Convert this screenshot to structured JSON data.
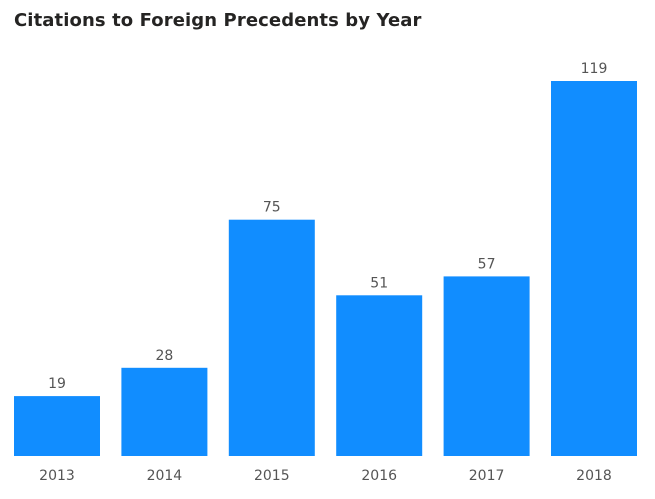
{
  "chart_data": {
    "type": "bar",
    "title": "Citations to Foreign Precedents by Year",
    "xlabel": "",
    "ylabel": "",
    "categories": [
      "2013",
      "2014",
      "2015",
      "2016",
      "2017",
      "2018"
    ],
    "values": [
      19,
      28,
      75,
      51,
      57,
      119
    ],
    "ylim": [
      0,
      119
    ],
    "grid": false,
    "data_labels": true,
    "bar_color": "#118DFF"
  }
}
